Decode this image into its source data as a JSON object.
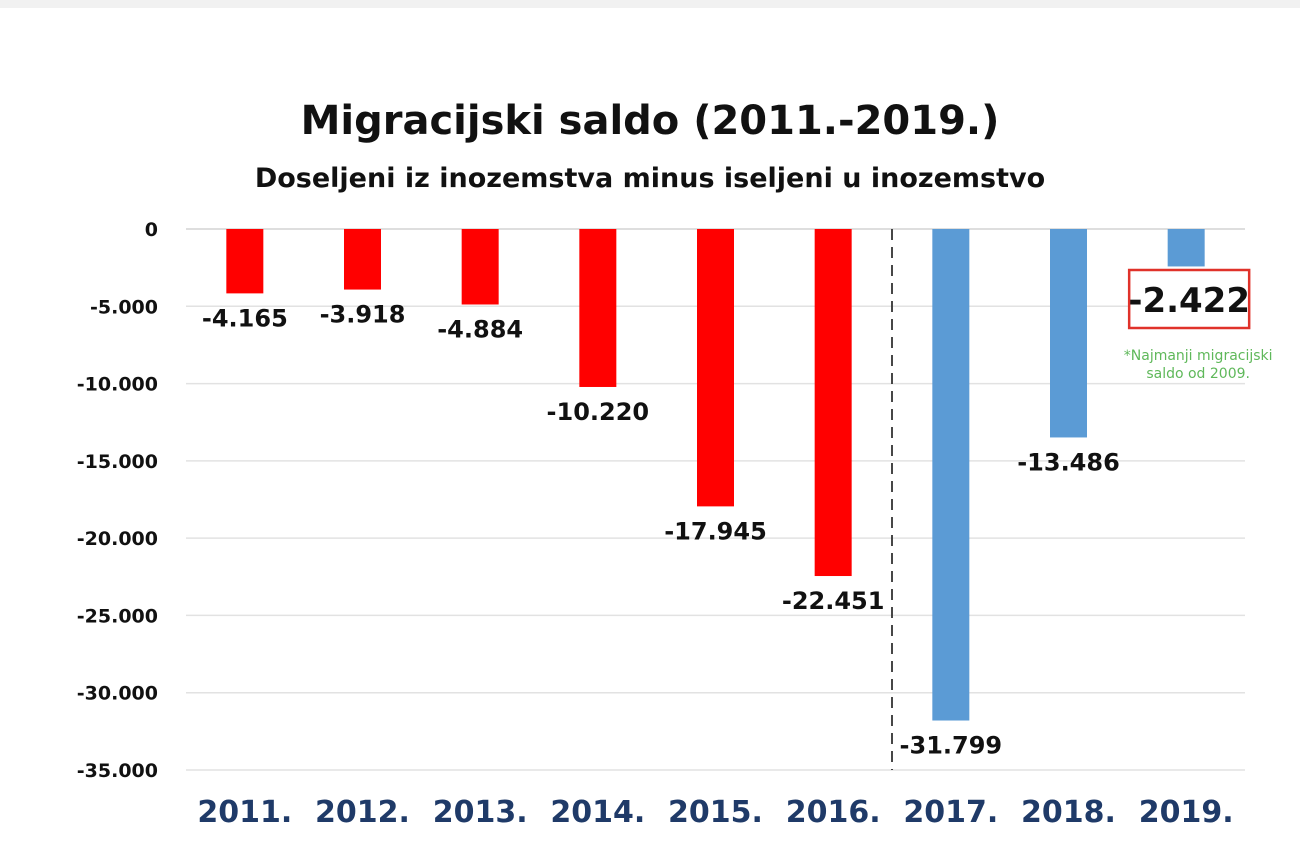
{
  "chart_data": {
    "type": "bar",
    "title": "Migracijski saldo (2011.-2019.)",
    "subtitle": "Doseljeni iz inozemstva minus iseljeni u inozemstvo",
    "categories": [
      "2011.",
      "2012.",
      "2013.",
      "2014.",
      "2015.",
      "2016.",
      "2017.",
      "2018.",
      "2019."
    ],
    "values": [
      -4165,
      -3918,
      -4884,
      -10220,
      -17945,
      -22451,
      -31799,
      -13486,
      -2422
    ],
    "data_labels": [
      "-4.165",
      "-3.918",
      "-4.884",
      "-10.220",
      "-17.945",
      "-22.451",
      "-31.799",
      "-13.486",
      "-2.422"
    ],
    "bar_colors": [
      "#ff0000",
      "#ff0000",
      "#ff0000",
      "#ff0000",
      "#ff0000",
      "#ff0000",
      "#5b9bd5",
      "#5b9bd5",
      "#5b9bd5"
    ],
    "y_ticks": [
      0,
      -5000,
      -10000,
      -15000,
      -20000,
      -25000,
      -30000,
      -35000
    ],
    "y_tick_labels": [
      "0",
      "-5.000",
      "-10.000",
      "-15.000",
      "-20.000",
      "-25.000",
      "-30.000",
      "-35.000"
    ],
    "ylim": [
      -35000,
      0
    ],
    "grid": true,
    "xlabel": "",
    "ylabel": "",
    "divider_after_category": "2016.",
    "highlight": {
      "category": "2019.",
      "label": "-2.422",
      "box_color": "#e0322a",
      "note_lines": [
        "*Najmanji migracijski",
        "saldo od 2009."
      ],
      "note_color": "#5fb85a"
    },
    "axis_label_color": "#1f3a68"
  }
}
